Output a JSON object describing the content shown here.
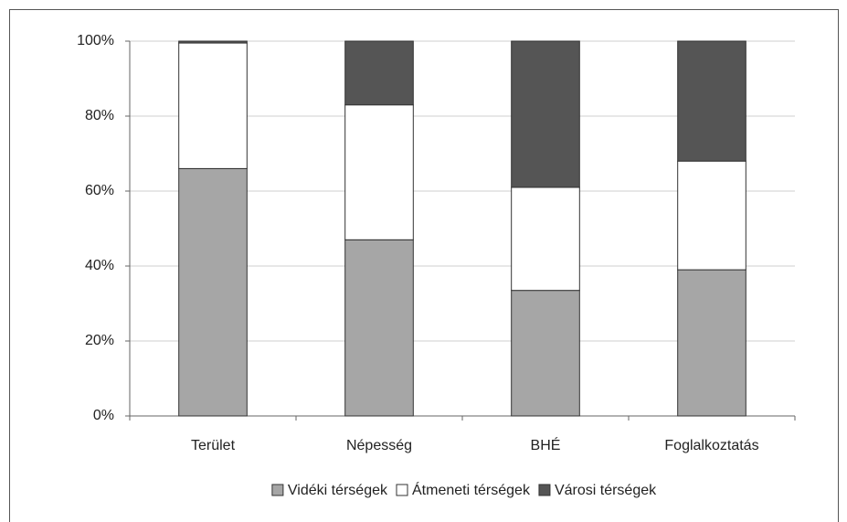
{
  "chart_data": {
    "type": "stacked_bar",
    "categories": [
      "Terület",
      "Népesség",
      "BHÉ",
      "Foglalkoztatás"
    ],
    "series": [
      {
        "name": "Vidéki térségek",
        "color": "#a6a6a6",
        "values": [
          66,
          47,
          33.5,
          39
        ]
      },
      {
        "name": "Átmeneti térségek",
        "color": "#ffffff",
        "values": [
          33.5,
          36,
          27.5,
          29
        ]
      },
      {
        "name": "Városi térségek",
        "color": "#555555",
        "values": [
          0.5,
          17,
          39,
          32
        ]
      }
    ],
    "ylim": [
      0,
      100
    ],
    "yticks": [
      {
        "value": 0,
        "label": "0%"
      },
      {
        "value": 20,
        "label": "20%"
      },
      {
        "value": 40,
        "label": "40%"
      },
      {
        "value": 60,
        "label": "60%"
      },
      {
        "value": 80,
        "label": "80%"
      },
      {
        "value": 100,
        "label": "100%"
      }
    ],
    "grid": true,
    "legend": "bottom"
  }
}
